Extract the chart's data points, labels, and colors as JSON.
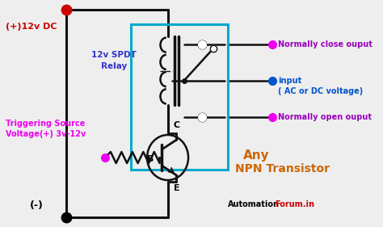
{
  "bg_color": "#eeeeee",
  "colors": {
    "wire": "#111111",
    "red": "#cc0000",
    "magenta": "#ee00ee",
    "blue": "#0055cc",
    "cyan_box": "#00aacc",
    "orange": "#cc6600",
    "purple": "#9900bb",
    "blue_relay": "#3333cc",
    "black": "#000000"
  },
  "labels": {
    "plus_12v": "(+)12v DC",
    "minus": "(-)",
    "relay": "12v SPDT\nRelay",
    "triggering": "Triggering Source\nVoltage(+) 3v-12v",
    "B": "B",
    "C": "C",
    "E": "E",
    "nc": "Normally close ouput",
    "no": "Normally open ouput",
    "input_label": "input\n( AC or DC voltage)",
    "automation": "Automation",
    "forum": "Forum.in",
    "any": "Any",
    "npn": "NPN Transistor"
  }
}
